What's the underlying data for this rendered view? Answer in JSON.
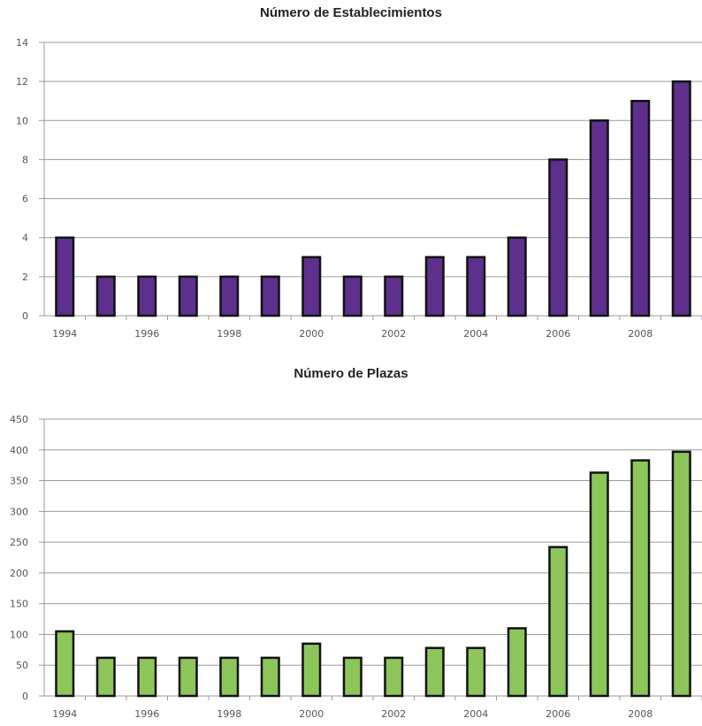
{
  "chart_data": [
    {
      "type": "bar",
      "title": "Número de Establecimientos",
      "xlabel": "",
      "ylabel": "",
      "categories": [
        "1994",
        "1995",
        "1996",
        "1997",
        "1998",
        "1999",
        "2000",
        "2001",
        "2002",
        "2003",
        "2004",
        "2005",
        "2006",
        "2007",
        "2008",
        "2009"
      ],
      "x_tick_labels": [
        "1994",
        "1996",
        "1998",
        "2000",
        "2002",
        "2004",
        "2006",
        "2008"
      ],
      "values": [
        4,
        2,
        2,
        2,
        2,
        2,
        3,
        2,
        2,
        3,
        3,
        4,
        8,
        10,
        11,
        12
      ],
      "ylim": [
        0,
        14
      ],
      "y_ticks": [
        0,
        2,
        4,
        6,
        8,
        10,
        12,
        14
      ],
      "grid": true,
      "bar_color": "#5e2f8c"
    },
    {
      "type": "bar",
      "title": "Número de Plazas",
      "xlabel": "",
      "ylabel": "",
      "categories": [
        "1994",
        "1995",
        "1996",
        "1997",
        "1998",
        "1999",
        "2000",
        "2001",
        "2002",
        "2003",
        "2004",
        "2005",
        "2006",
        "2007",
        "2008",
        "2009"
      ],
      "x_tick_labels": [
        "1994",
        "1996",
        "1998",
        "2000",
        "2002",
        "2004",
        "2006",
        "2008"
      ],
      "values": [
        105,
        62,
        62,
        62,
        62,
        62,
        85,
        62,
        62,
        78,
        78,
        110,
        242,
        363,
        383,
        397
      ],
      "ylim": [
        0,
        450
      ],
      "y_ticks": [
        0,
        50,
        100,
        150,
        200,
        250,
        300,
        350,
        400,
        450
      ],
      "grid": true,
      "bar_color": "#8cc65a"
    }
  ]
}
